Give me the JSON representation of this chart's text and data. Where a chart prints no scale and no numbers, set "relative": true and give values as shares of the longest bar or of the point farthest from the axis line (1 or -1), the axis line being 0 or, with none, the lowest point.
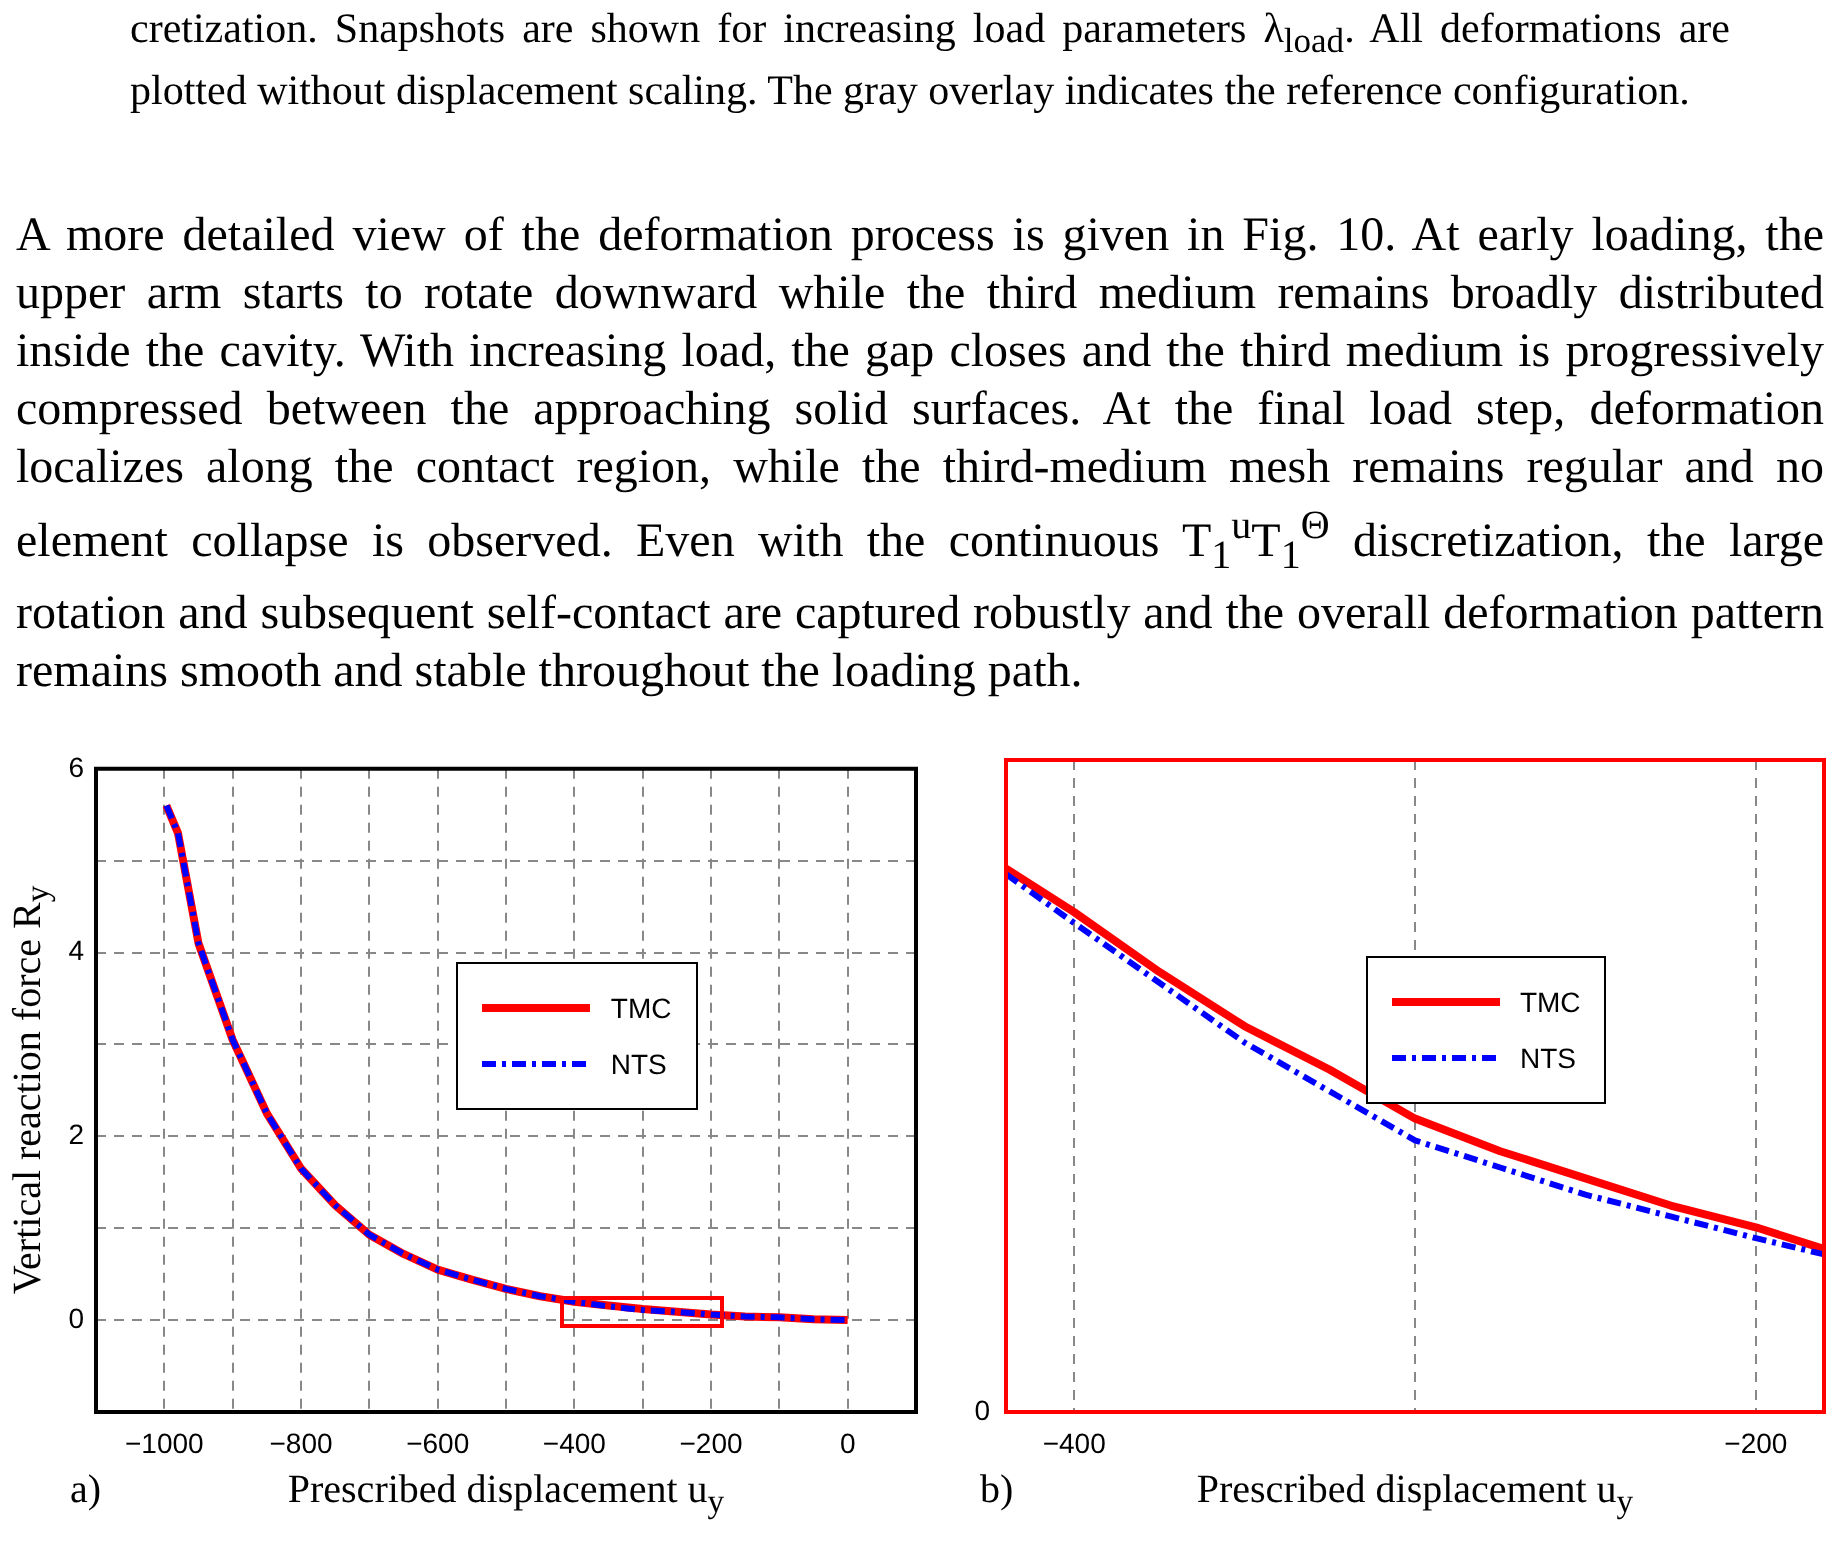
{
  "chart_data": [
    {
      "type": "line",
      "xlabel": "Prescribed displacement u$_{y}$",
      "ylabel": "Vertical reaction force R$_{y}$",
      "annotations": [
        "cretization. Snapshots are shown for increasing load parameters λ$_{load}$. All deformations are plotted without displacement scaling. The gray overlay indicates the reference configuration.",
        "A more detailed view of the deformation process is given in Fig. 10. At early loading, the upper arm starts to rotate downward while the third medium remains broadly distributed inside the cavity. With increasing load, the gap closes and the third medium is progressively compressed between the approaching solid surfaces. At the final load step, deformation localizes along the contact region, while the third-medium mesh remains regular and no element collapse is observed. Even with the continuous T$_{1}$$^{u}$T$_{1}$$^{Θ}$ discretization, the large rotation and subsequent self-contact are captured robustly and the overall deformation pattern remains smooth and stable throughout the loading path.",
        "a)"
      ],
      "x": [
        -997,
        -980,
        -950,
        -900,
        -850,
        -800,
        -750,
        -700,
        -650,
        -600,
        -550,
        -500,
        -450,
        -400,
        -350,
        -300,
        -250,
        -200,
        -150,
        -100,
        -50,
        0
      ],
      "series": [
        {
          "name": "TMC",
          "color": "#ff0000",
          "line_style": "solid",
          "values": [
            5.6,
            5.3,
            4.1,
            3.05,
            2.25,
            1.65,
            1.25,
            0.93,
            0.72,
            0.55,
            0.44,
            0.34,
            0.26,
            0.2,
            0.16,
            0.12,
            0.09,
            0.06,
            0.04,
            0.03,
            0.01,
            0
          ]
        },
        {
          "name": "NTS",
          "color": "#0000ff",
          "line_style": "dashdot",
          "values": [
            5.6,
            5.3,
            4.1,
            3.05,
            2.25,
            1.65,
            1.25,
            0.93,
            0.72,
            0.55,
            0.44,
            0.34,
            0.26,
            0.2,
            0.15,
            0.11,
            0.09,
            0.06,
            0.04,
            0.03,
            0.01,
            0
          ]
        }
      ],
      "xlim": [
        -1100,
        100
      ],
      "ylim": [
        -1,
        6
      ],
      "xticks": [
        -1000,
        {
          "value": -900,
          "label": null
        },
        -800,
        {
          "value": -700,
          "label": null
        },
        -600,
        {
          "value": -500,
          "label": null
        },
        -400,
        {
          "value": -300,
          "label": null
        },
        -200,
        {
          "value": -100,
          "label": null
        },
        0
      ],
      "yticks": [
        0,
        {
          "value": 1,
          "label": null
        },
        2,
        {
          "value": 3,
          "label": null
        },
        4,
        {
          "value": 5,
          "label": null
        },
        6
      ],
      "grid": true,
      "legend": "right",
      "marker": "none"
    },
    {
      "type": "line",
      "xlabel": "Prescribed displacement u$_{y}$",
      "relative": true,
      "annotations": [
        "0",
        "b)"
      ],
      "x": [
        -420,
        -400,
        -375,
        -350,
        -325,
        -300,
        -275,
        -250,
        -225,
        -200,
        -180
      ],
      "series": [
        {
          "name": "TMC",
          "color": "#ff0000",
          "line_style": "solid",
          "values": [
            1.0,
            0.92,
            0.81,
            0.71,
            0.63,
            0.54,
            0.48,
            0.43,
            0.38,
            0.34,
            0.3
          ]
        },
        {
          "name": "NTS",
          "color": "#0000ff",
          "line_style": "dashdot",
          "values": [
            0.99,
            0.9,
            0.79,
            0.68,
            0.59,
            0.5,
            0.45,
            0.4,
            0.36,
            0.32,
            0.29
          ]
        }
      ],
      "xlim": [
        -420,
        -180
      ],
      "xticks": [
        -400,
        {
          "value": -300,
          "label": null
        },
        -200
      ],
      "grid": "x",
      "legend": "right",
      "marker": "none"
    }
  ]
}
